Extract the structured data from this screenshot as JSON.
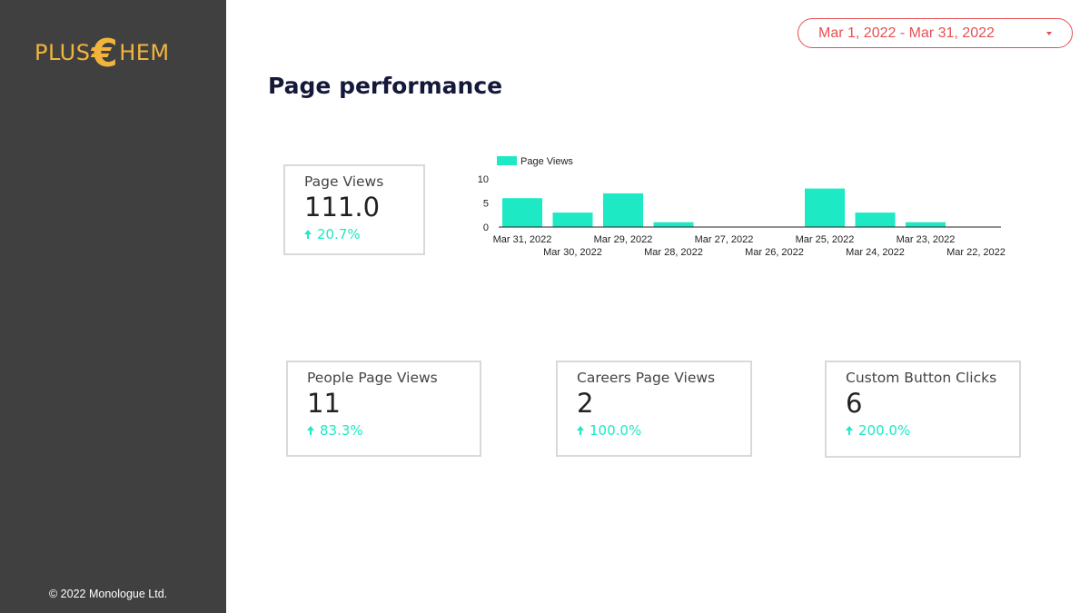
{
  "brand": {
    "logo_left": "PLUS",
    "logo_symbol": "€",
    "logo_right": "HEM",
    "logo_color": "#f2b43c"
  },
  "sidebar": {
    "copyright": "© 2022 Monologue Ltd."
  },
  "date_range": {
    "label": "Mar 1, 2022 - Mar 31, 2022",
    "icon": "caret-down-icon",
    "color": "#e84f52"
  },
  "page": {
    "title": "Page performance"
  },
  "scorecards": [
    {
      "label": "Page Views",
      "value": "111.0",
      "delta": "20.7%",
      "icon": "arrow-up-icon"
    },
    {
      "label": "People Page Views",
      "value": "11",
      "delta": "83.3%",
      "icon": "arrow-up-icon"
    },
    {
      "label": "Careers Page Views",
      "value": "2",
      "delta": "100.0%",
      "icon": "arrow-up-icon"
    },
    {
      "label": "Custom Button Clicks",
      "value": "6",
      "delta": "200.0%",
      "icon": "arrow-up-icon"
    }
  ],
  "accent_color": "#1de9c4",
  "chart_data": {
    "type": "bar",
    "categories": [
      "Mar 31, 2022",
      "Mar 30, 2022",
      "Mar 29, 2022",
      "Mar 28, 2022",
      "Mar 27, 2022",
      "Mar 26, 2022",
      "Mar 25, 2022",
      "Mar 24, 2022",
      "Mar 23, 2022",
      "Mar 22, 2022"
    ],
    "series": [
      {
        "name": "Page Views",
        "values": [
          6,
          3,
          7,
          1,
          0,
          0,
          8,
          3,
          1,
          0
        ],
        "color": "#1de9c4"
      }
    ],
    "y_ticks": [
      0,
      5,
      10
    ],
    "ylim": [
      0,
      10
    ],
    "legend": "top-left",
    "grid": false
  }
}
